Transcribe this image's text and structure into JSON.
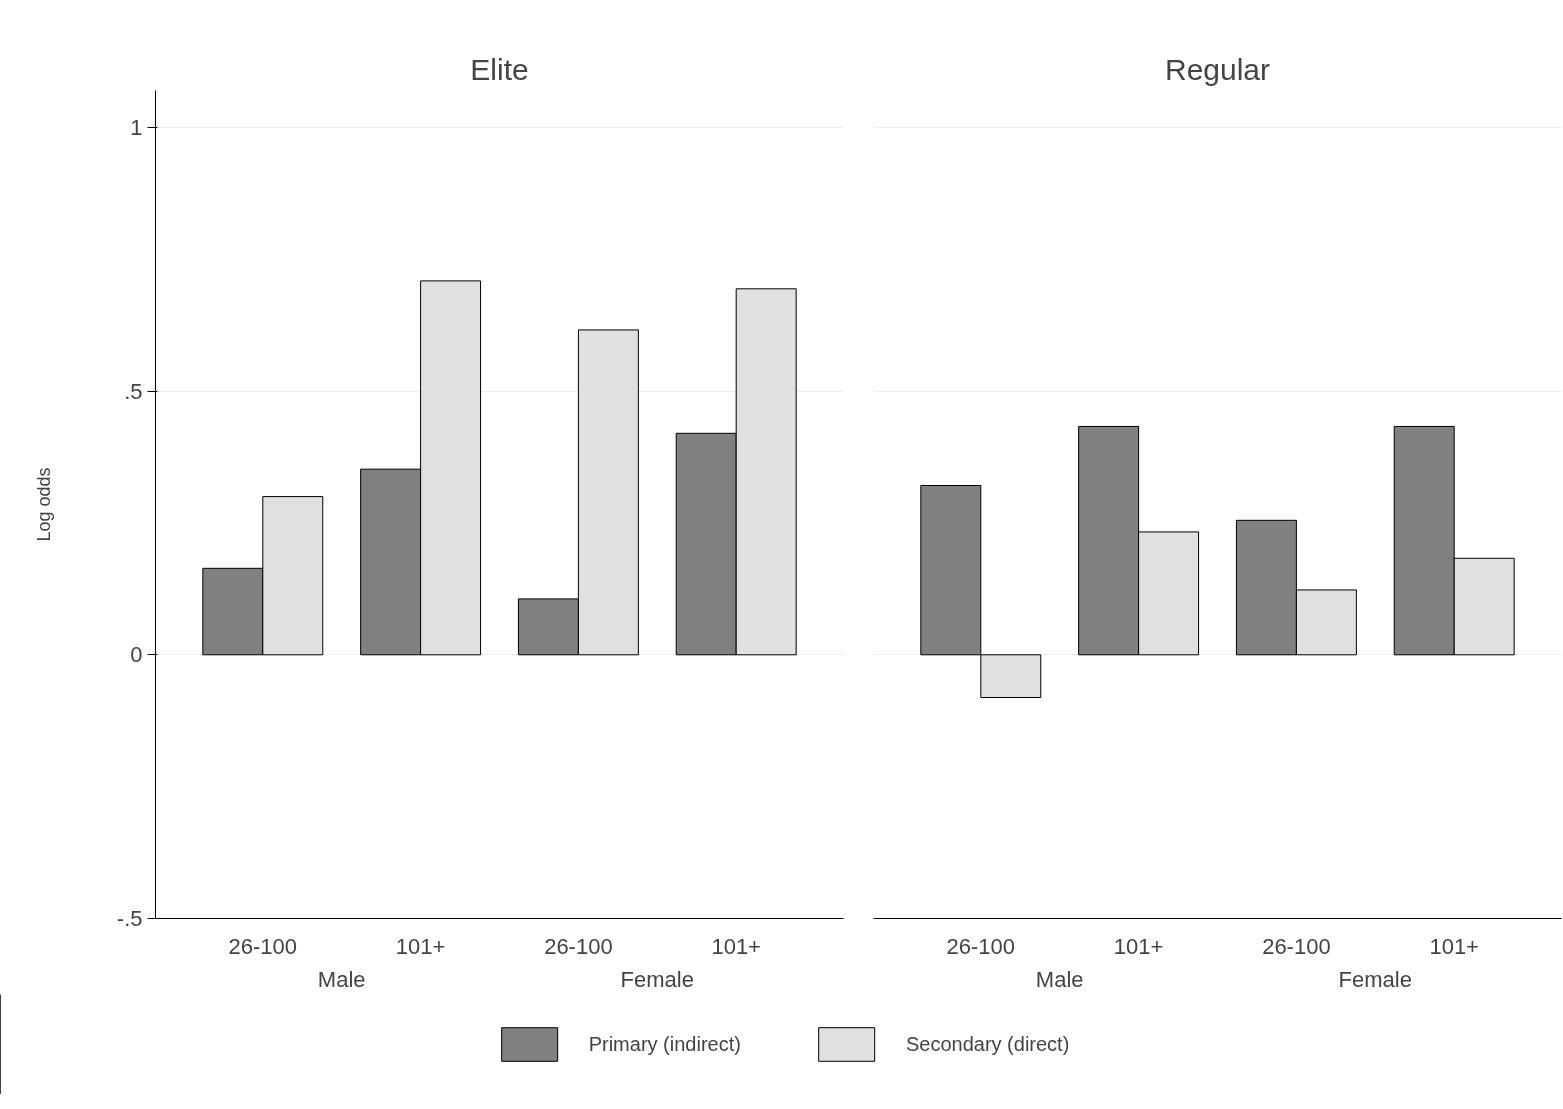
{
  "chart_data": [
    {
      "type": "bar",
      "title": "Elite",
      "ylabel": "Log odds",
      "categories": [
        "26-100",
        "101+",
        "26-100",
        "101+"
      ],
      "annotations": [
        "Male",
        "Female"
      ],
      "series": [
        {
          "name": "Primary (indirect)",
          "color": "#808080",
          "values": [
            0.164,
            0.352,
            0.106,
            0.42
          ]
        },
        {
          "name": "Secondary (direct)",
          "color": "#e0e0e0",
          "values": [
            0.3,
            0.709,
            0.616,
            0.694
          ]
        }
      ],
      "ylim": [
        -0.5,
        1.07
      ],
      "yticks": [
        {
          "value": -0.5,
          "label": "-.5"
        },
        0,
        {
          "value": 0.5,
          "label": ".5"
        },
        1
      ],
      "grid": "y",
      "legend": "bottom"
    },
    {
      "type": "bar",
      "title": "Regular",
      "categories": [
        "26-100",
        "101+",
        "26-100",
        "101+"
      ],
      "annotations": [
        "Male",
        "Female"
      ],
      "series": [
        {
          "color": "#808080",
          "values": [
            0.321,
            0.433,
            0.255,
            0.433
          ]
        },
        {
          "color": "#e0e0e0",
          "values": [
            -0.081,
            0.233,
            0.123,
            0.183
          ]
        }
      ],
      "yticks": [
        -0.5,
        0,
        0.5,
        1
      ],
      "grid": "y",
      "tick_labels": "x"
    }
  ]
}
